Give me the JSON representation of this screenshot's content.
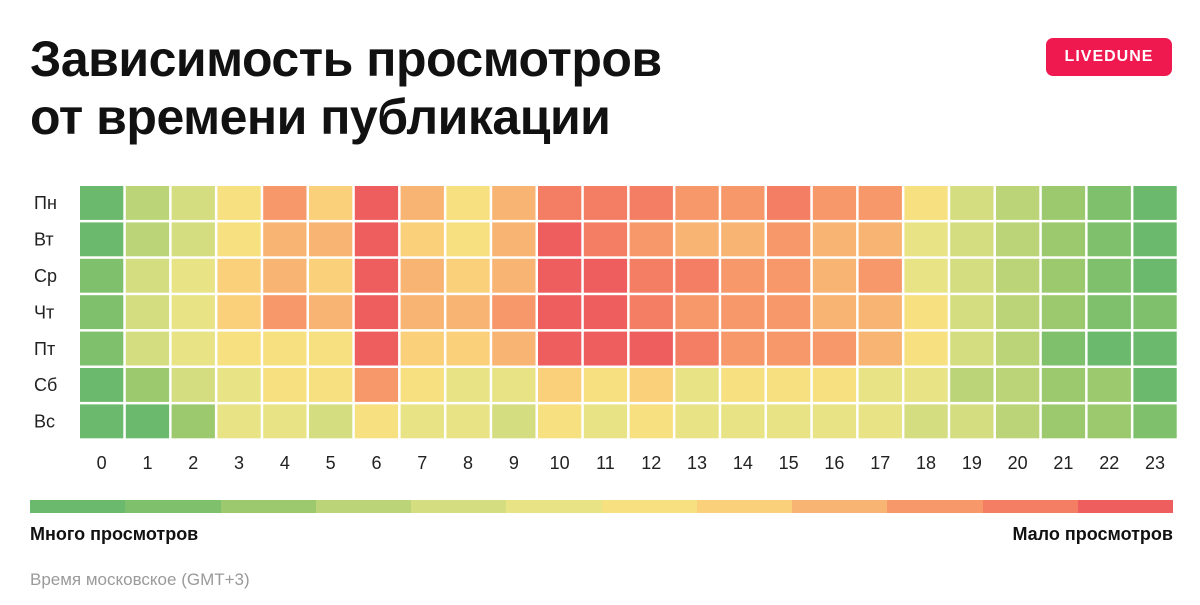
{
  "header": {
    "title_line1": "Зависимость просмотров",
    "title_line2": "от времени публикации",
    "brand_badge": "LIVEDUNE"
  },
  "colors": {
    "brand": "#f0194f",
    "scale": [
      "#6ab96c",
      "#7fc06d",
      "#9cc96e",
      "#bcd478",
      "#d4dd80",
      "#e8e384",
      "#f7e07f",
      "#fbd07a",
      "#f8b472",
      "#f6986a",
      "#f37e64",
      "#ee5e5e"
    ]
  },
  "chart_data": {
    "type": "heatmap",
    "x": [
      "0",
      "1",
      "2",
      "3",
      "4",
      "5",
      "6",
      "7",
      "8",
      "9",
      "10",
      "11",
      "12",
      "13",
      "14",
      "15",
      "16",
      "17",
      "18",
      "19",
      "20",
      "21",
      "22",
      "23"
    ],
    "y": [
      "Пн",
      "Вт",
      "Ср",
      "Чт",
      "Пт",
      "Сб",
      "Вс"
    ],
    "value_scale": "0 = много просмотров, 11 = мало просмотров",
    "values": [
      [
        0,
        3,
        4,
        6,
        9,
        7,
        11,
        8,
        6,
        8,
        10,
        10,
        10,
        9,
        9,
        10,
        9,
        9,
        6,
        4,
        3,
        2,
        1,
        0
      ],
      [
        0,
        3,
        4,
        6,
        8,
        8,
        11,
        7,
        6,
        8,
        11,
        10,
        9,
        8,
        8,
        9,
        8,
        8,
        5,
        4,
        3,
        2,
        1,
        0
      ],
      [
        1,
        4,
        5,
        7,
        8,
        7,
        11,
        8,
        7,
        8,
        11,
        11,
        10,
        10,
        9,
        9,
        8,
        9,
        5,
        4,
        3,
        2,
        1,
        0
      ],
      [
        1,
        4,
        5,
        7,
        9,
        8,
        11,
        8,
        8,
        9,
        11,
        11,
        10,
        9,
        9,
        9,
        8,
        8,
        6,
        4,
        3,
        2,
        1,
        1
      ],
      [
        1,
        4,
        5,
        6,
        6,
        6,
        11,
        7,
        7,
        8,
        11,
        11,
        11,
        10,
        9,
        9,
        9,
        8,
        6,
        4,
        3,
        1,
        0,
        0
      ],
      [
        0,
        2,
        4,
        5,
        6,
        6,
        9,
        6,
        5,
        5,
        7,
        6,
        7,
        5,
        6,
        6,
        6,
        5,
        5,
        3,
        3,
        2,
        2,
        0
      ],
      [
        0,
        0,
        2,
        5,
        5,
        4,
        6,
        5,
        5,
        4,
        6,
        5,
        6,
        5,
        5,
        5,
        5,
        5,
        4,
        4,
        3,
        2,
        2,
        1
      ]
    ],
    "legend": {
      "low_label": "Много просмотров",
      "high_label": "Мало просмотров"
    },
    "note": "Время московское (GMT+3)"
  }
}
